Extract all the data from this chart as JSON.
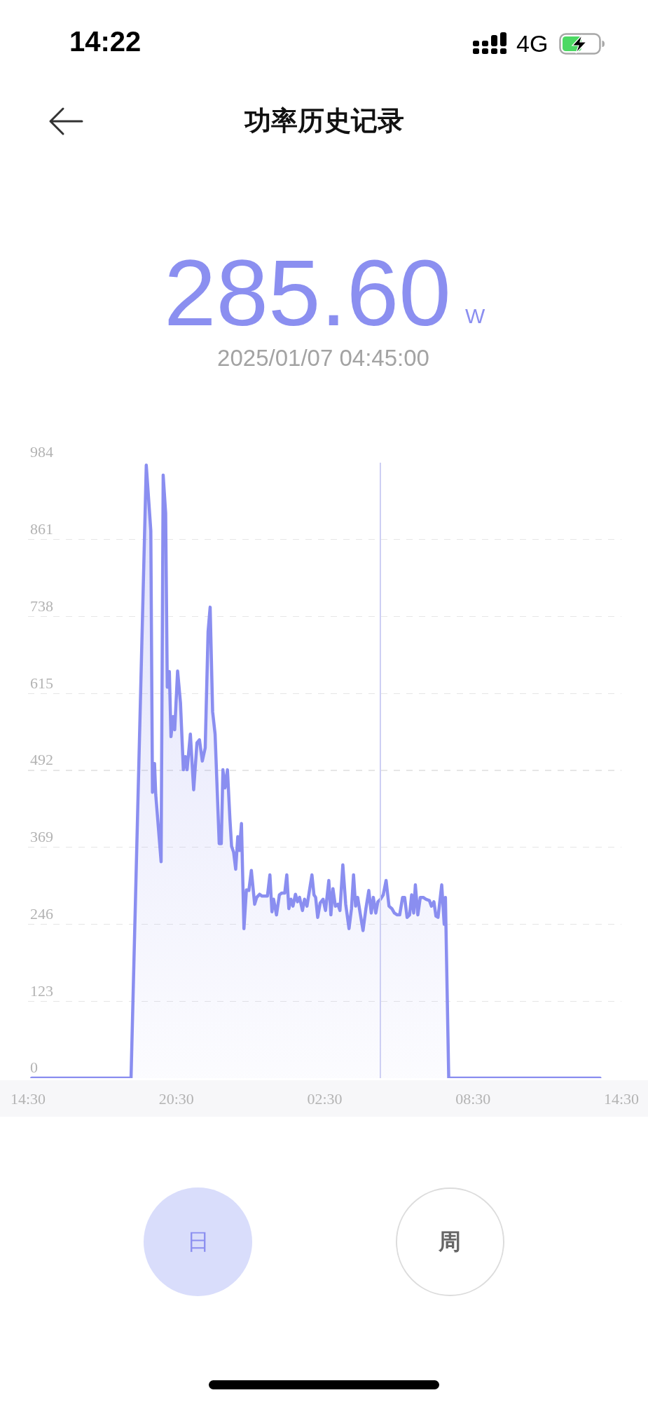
{
  "chart_data": {
    "type": "area",
    "title": "功率历史记录",
    "annotations": [
      "14:22",
      "4G",
      "285.60",
      "W",
      "2025/01/07 04:45:00",
      "日",
      "周"
    ],
    "x": [
      "2025-01-06T14:39",
      "2025-01-06T18:40",
      "2025-01-06T19:17",
      "2025-01-06T19:28",
      "2025-01-06T19:32",
      "2025-01-06T19:37",
      "2025-01-06T19:40",
      "2025-01-06T19:53",
      "2025-01-06T19:58",
      "2025-01-06T20:04",
      "2025-01-06T20:08",
      "2025-01-06T20:13",
      "2025-01-06T20:17",
      "2025-01-06T20:22",
      "2025-01-06T20:26",
      "2025-01-06T20:33",
      "2025-01-06T20:40",
      "2025-01-06T20:47",
      "2025-01-06T20:52",
      "2025-01-06T20:56",
      "2025-01-06T21:04",
      "2025-01-06T21:12",
      "2025-01-06T21:20",
      "2025-01-06T21:26",
      "2025-01-06T21:33",
      "2025-01-06T21:40",
      "2025-01-06T21:47",
      "2025-01-06T21:52",
      "2025-01-06T21:58",
      "2025-01-06T22:04",
      "2025-01-06T22:14",
      "2025-01-06T22:19",
      "2025-01-06T22:23",
      "2025-01-06T22:28",
      "2025-01-06T22:34",
      "2025-01-06T22:40",
      "2025-01-06T22:44",
      "2025-01-06T22:49",
      "2025-01-06T22:54",
      "2025-01-06T22:59",
      "2025-01-06T23:03",
      "2025-01-06T23:08",
      "2025-01-06T23:14",
      "2025-01-06T23:20",
      "2025-01-06T23:26",
      "2025-01-06T23:32",
      "2025-01-06T23:40",
      "2025-01-06T23:45",
      "2025-01-06T23:52",
      "2025-01-06T23:58",
      "2025-01-07T00:05",
      "2025-01-07T00:11",
      "2025-01-07T00:17",
      "2025-01-07T00:22",
      "2025-01-07T00:26",
      "2025-01-07T00:33",
      "2025-01-07T00:40",
      "2025-01-07T00:46",
      "2025-01-07T00:53",
      "2025-01-07T00:58",
      "2025-01-07T01:03",
      "2025-01-07T01:08",
      "2025-01-07T01:13",
      "2025-01-07T01:19",
      "2025-01-07T01:24",
      "2025-01-07T01:29",
      "2025-01-07T01:36",
      "2025-01-07T01:41",
      "2025-01-07T01:47",
      "2025-01-07T01:59",
      "2025-01-07T02:04",
      "2025-01-07T02:08",
      "2025-01-07T02:13",
      "2025-01-07T02:19",
      "2025-01-07T02:26",
      "2025-01-07T02:32",
      "2025-01-07T02:40",
      "2025-01-07T02:45",
      "2025-01-07T02:50",
      "2025-01-07T02:56",
      "2025-01-07T03:02",
      "2025-01-07T03:07",
      "2025-01-07T03:14",
      "2025-01-07T03:21",
      "2025-01-07T03:29",
      "2025-01-07T03:35",
      "2025-01-07T03:40",
      "2025-01-07T03:45",
      "2025-01-07T03:50",
      "2025-01-07T03:56",
      "2025-01-07T04:03",
      "2025-01-07T04:10",
      "2025-01-07T04:17",
      "2025-01-07T04:23",
      "2025-01-07T04:28",
      "2025-01-07T04:34",
      "2025-01-07T04:39",
      "2025-01-07T04:45",
      "2025-01-07T04:52",
      "2025-01-07T04:59",
      "2025-01-07T05:06",
      "2025-01-07T05:13",
      "2025-01-07T05:19",
      "2025-01-07T05:26",
      "2025-01-07T05:32",
      "2025-01-07T05:39",
      "2025-01-07T05:44",
      "2025-01-07T05:50",
      "2025-01-07T05:56",
      "2025-01-07T06:01",
      "2025-01-07T06:06",
      "2025-01-07T06:10",
      "2025-01-07T06:16",
      "2025-01-07T06:22",
      "2025-01-07T06:29",
      "2025-01-07T06:36",
      "2025-01-07T06:44",
      "2025-01-07T06:49",
      "2025-01-07T06:55",
      "2025-01-07T07:00",
      "2025-01-07T07:05",
      "2025-01-07T07:14",
      "2025-01-07T07:20",
      "2025-01-07T07:23",
      "2025-01-07T07:31",
      "2025-01-07T13:38"
    ],
    "values": [
      0,
      0,
      980,
      875,
      457,
      503,
      453,
      346,
      964,
      903,
      625,
      650,
      546,
      578,
      557,
      651,
      600,
      493,
      514,
      493,
      550,
      461,
      536,
      541,
      507,
      528,
      714,
      753,
      586,
      550,
      375,
      375,
      493,
      464,
      493,
      414,
      371,
      361,
      334,
      386,
      364,
      407,
      239,
      301,
      300,
      332,
      278,
      289,
      294,
      291,
      291,
      291,
      325,
      266,
      286,
      261,
      293,
      296,
      296,
      325,
      271,
      286,
      275,
      294,
      282,
      289,
      268,
      286,
      275,
      325,
      293,
      289,
      257,
      280,
      286,
      268,
      316,
      261,
      303,
      275,
      278,
      268,
      341,
      278,
      239,
      271,
      325,
      275,
      289,
      264,
      236,
      271,
      300,
      264,
      289,
      264,
      282,
      285.6,
      293,
      316,
      275,
      271,
      264,
      261,
      261,
      289,
      289,
      257,
      261,
      293,
      264,
      309,
      261,
      289,
      289,
      286,
      284,
      275,
      282,
      259,
      257,
      309,
      246,
      289,
      0,
      0
    ],
    "color": "#8a8ef0",
    "xlim": [
      "2025-01-06T14:30",
      "2025-01-07T14:30"
    ],
    "xticks": [
      {
        "value": "2025-01-06T14:30",
        "label": "14:30"
      },
      {
        "value": "2025-01-06T20:30",
        "label": "20:30"
      },
      {
        "value": "2025-01-07T02:30",
        "label": "02:30"
      },
      {
        "value": "2025-01-07T08:30",
        "label": "08:30"
      },
      {
        "value": "2025-01-07T14:30",
        "label": "14:30"
      }
    ],
    "ylim": [
      0,
      984
    ],
    "yticks": [
      0,
      123,
      246,
      369,
      492,
      615,
      738,
      861,
      984
    ],
    "grid": "y",
    "ref_lines": [
      {
        "axis": "x",
        "value": "2025-01-07T04:45",
        "color": "#c8caf2"
      }
    ]
  }
}
